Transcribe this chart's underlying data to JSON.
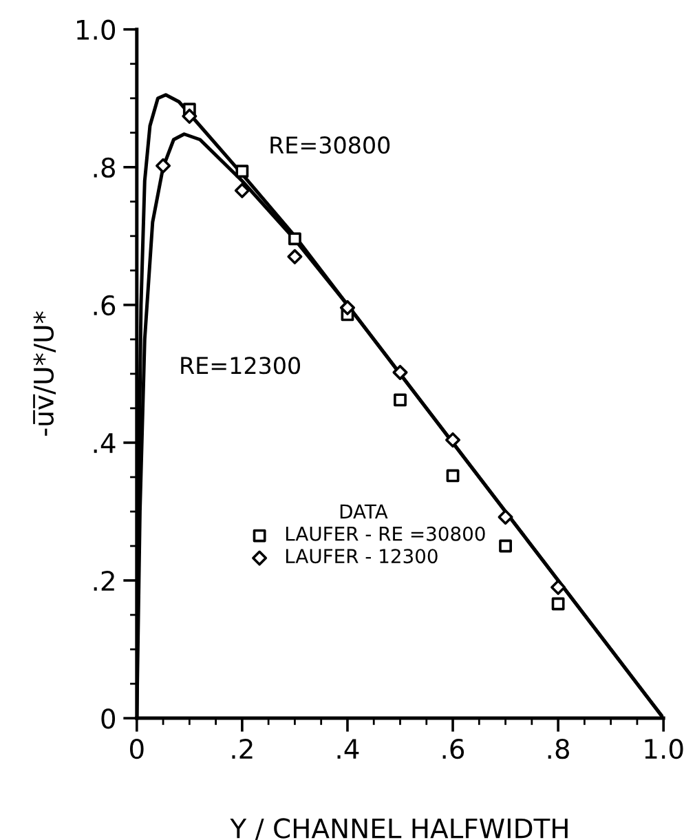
{
  "chart_data": {
    "type": "line",
    "xlabel": "Y / CHANNEL HALFWIDTH",
    "ylabel": "-u̅v̅/U*/U*",
    "legend_title": "DATA",
    "xlim": [
      0,
      1.0
    ],
    "ylim": [
      0,
      1.0
    ],
    "xticks": [
      {
        "value": 0,
        "label": "0"
      },
      {
        "value": 0.2,
        "label": ".2"
      },
      {
        "value": 0.4,
        "label": ".4"
      },
      {
        "value": 0.6,
        "label": ".6"
      },
      {
        "value": 0.8,
        "label": ".8"
      },
      {
        "value": 1.0,
        "label": "1.0"
      }
    ],
    "yticks": [
      {
        "value": 0,
        "label": "0"
      },
      {
        "value": 0.2,
        "label": ".2"
      },
      {
        "value": 0.4,
        "label": ".4"
      },
      {
        "value": 0.6,
        "label": ".6"
      },
      {
        "value": 0.8,
        "label": ".8"
      },
      {
        "value": 1.0,
        "label": "1.0"
      }
    ],
    "grid": false,
    "legend": "bottom",
    "annotations": [
      "RE=30800",
      "RE=12300"
    ],
    "series": [
      {
        "color": "#000000",
        "marker": "none",
        "x": [
          0,
          0.003,
          0.008,
          0.015,
          0.025,
          0.04,
          0.055,
          0.08,
          0.12,
          0.2,
          0.3,
          0.4,
          0.5,
          0.6,
          0.7,
          0.8,
          0.9,
          1.0
        ],
        "values": [
          0,
          0.3,
          0.6,
          0.78,
          0.86,
          0.9,
          0.905,
          0.895,
          0.86,
          0.79,
          0.7,
          0.6,
          0.5,
          0.4,
          0.3,
          0.2,
          0.1,
          0
        ]
      },
      {
        "color": "#000000",
        "marker": "none",
        "x": [
          0,
          0.006,
          0.015,
          0.03,
          0.05,
          0.07,
          0.09,
          0.12,
          0.2,
          0.3,
          0.4,
          0.5,
          0.6,
          0.7,
          0.8,
          0.9,
          1.0
        ],
        "values": [
          0,
          0.3,
          0.55,
          0.72,
          0.8,
          0.84,
          0.848,
          0.84,
          0.78,
          0.695,
          0.6,
          0.5,
          0.4,
          0.3,
          0.2,
          0.1,
          0
        ]
      },
      {
        "type": "scatter",
        "name": "LAUFER - RE =30800",
        "color": "#000000",
        "marker": "square",
        "x": [
          0.1,
          0.2,
          0.3,
          0.4,
          0.5,
          0.6,
          0.7,
          0.8
        ],
        "values": [
          0.884,
          0.794,
          0.696,
          0.586,
          0.462,
          0.352,
          0.25,
          0.166
        ]
      },
      {
        "type": "scatter",
        "name": "LAUFER - 12300",
        "color": "#000000",
        "marker": "diamond",
        "x": [
          0.05,
          0.1,
          0.2,
          0.3,
          0.4,
          0.5,
          0.6,
          0.7,
          0.8
        ],
        "values": [
          0.802,
          0.874,
          0.766,
          0.67,
          0.596,
          0.502,
          0.404,
          0.292,
          0.19
        ]
      }
    ]
  }
}
